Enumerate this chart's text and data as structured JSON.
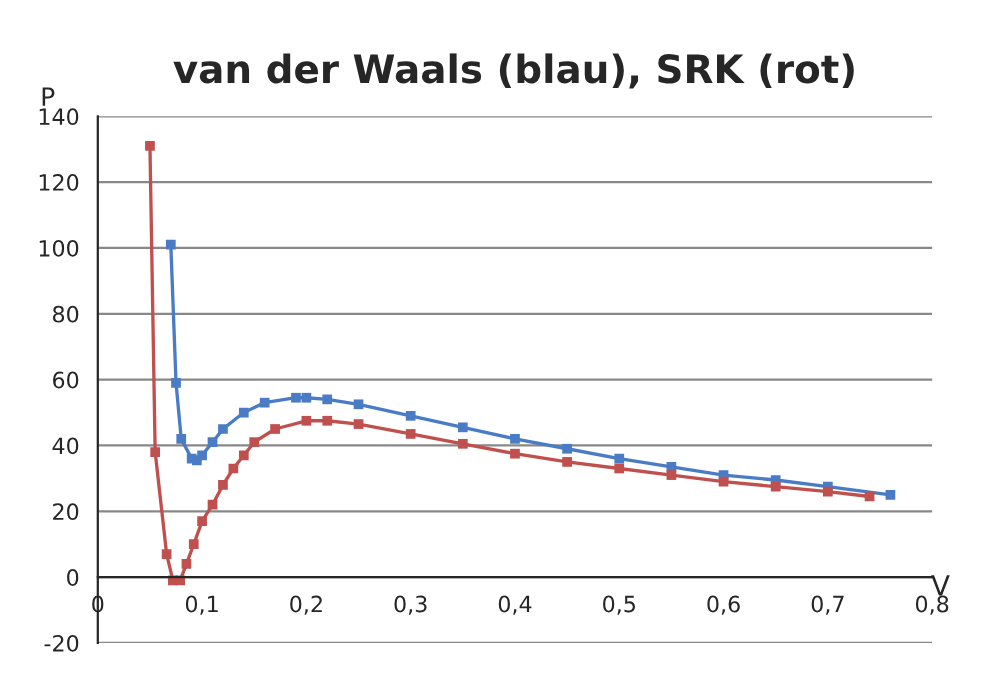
{
  "chart_data": {
    "type": "line",
    "title": "van der Waals (blau), SRK (rot)",
    "xlabel": "V",
    "ylabel": "P",
    "xlim": [
      0,
      0.8
    ],
    "xticks": [
      {
        "value": 0,
        "label": "0"
      },
      {
        "value": 0.1,
        "label": "0,1"
      },
      {
        "value": 0.2,
        "label": "0,2"
      },
      {
        "value": 0.3,
        "label": "0,3"
      },
      {
        "value": 0.4,
        "label": "0,4"
      },
      {
        "value": 0.5,
        "label": "0,5"
      },
      {
        "value": 0.6,
        "label": "0,6"
      },
      {
        "value": 0.7,
        "label": "0,7"
      },
      {
        "value": 0.8,
        "label": "0,8"
      }
    ],
    "ylim": [
      -20,
      140
    ],
    "yticks": [
      -20,
      0,
      20,
      40,
      60,
      80,
      100,
      120,
      140
    ],
    "grid": "y",
    "marker": "square",
    "line_style": "solid",
    "series": [
      {
        "color": "#4a7cc6",
        "x": [
          0.07,
          0.075,
          0.08,
          0.09,
          0.095,
          0.1,
          0.11,
          0.12,
          0.14,
          0.16,
          0.19,
          0.2,
          0.22,
          0.25,
          0.3,
          0.35,
          0.4,
          0.45,
          0.5,
          0.55,
          0.6,
          0.65,
          0.7,
          0.76
        ],
        "values": [
          101,
          59,
          42,
          36,
          35.5,
          37,
          41,
          45,
          50,
          53,
          54.5,
          54.5,
          54,
          52.5,
          49,
          45.5,
          42,
          39,
          36,
          33.5,
          31,
          29.5,
          27.5,
          25
        ]
      },
      {
        "color": "#c0504d",
        "x": [
          0.05,
          0.055,
          0.066,
          0.072,
          0.079,
          0.085,
          0.092,
          0.1,
          0.11,
          0.12,
          0.13,
          0.14,
          0.15,
          0.17,
          0.2,
          0.22,
          0.25,
          0.3,
          0.35,
          0.4,
          0.45,
          0.5,
          0.55,
          0.6,
          0.65,
          0.7,
          0.74
        ],
        "values": [
          131,
          38,
          7,
          -1,
          -1,
          4,
          10,
          17,
          22,
          28,
          33,
          37,
          41,
          45,
          47.5,
          47.5,
          46.5,
          43.5,
          40.5,
          37.5,
          35,
          33,
          31,
          29,
          27.5,
          26,
          24.5
        ]
      }
    ]
  }
}
